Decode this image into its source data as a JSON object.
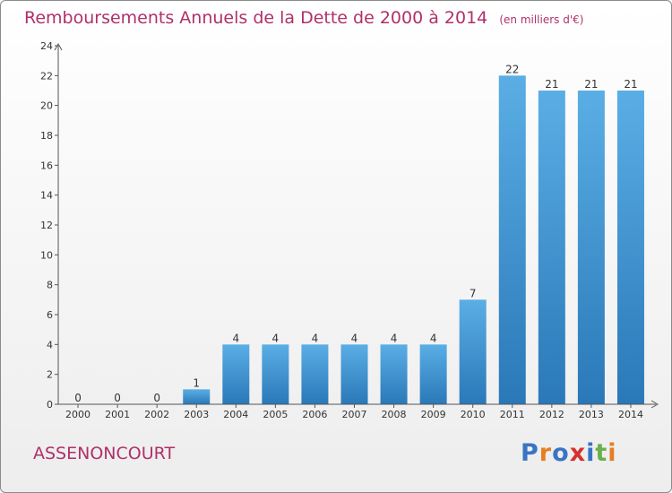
{
  "chart_data": {
    "type": "bar",
    "title": "Remboursements Annuels de la Dette de 2000 à 2014",
    "unit": "(en milliers d'€)",
    "categories": [
      "2000",
      "2001",
      "2002",
      "2003",
      "2004",
      "2005",
      "2006",
      "2007",
      "2008",
      "2009",
      "2010",
      "2011",
      "2012",
      "2013",
      "2014"
    ],
    "values": [
      0,
      0,
      0,
      1,
      4,
      4,
      4,
      4,
      4,
      4,
      7,
      22,
      21,
      21,
      21
    ],
    "data_labels": [
      "0",
      "0",
      "0",
      "1",
      "4",
      "4",
      "4",
      "4",
      "4",
      "4",
      "7",
      "22",
      "21",
      "21",
      "21"
    ],
    "ylim": [
      0,
      24
    ],
    "yticks": [
      "0",
      "2",
      "4",
      "6",
      "8",
      "10",
      "12",
      "14",
      "16",
      "18",
      "20",
      "22",
      "24"
    ],
    "grid": false,
    "legend": "none",
    "colors": {
      "bar_light": "#5aaee5",
      "bar_dark": "#2a78b8",
      "axis": "#555555",
      "title": "#b0306a"
    }
  },
  "commune": "ASSENONCOURT",
  "brand": {
    "text": "Proxiti",
    "letter_colors": [
      "#3a74c4",
      "#e67e22",
      "#3a74c4",
      "#d6322e",
      "#3a74c4",
      "#6ab04c",
      "#e67e22"
    ]
  }
}
